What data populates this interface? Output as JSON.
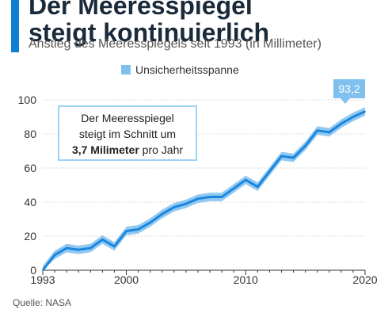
{
  "header": {
    "title_line1": "Der Meeresspiegel",
    "title_line2": "steigt kontinuierlich",
    "subtitle": "Anstieg des Meeresspiegels seit 1993 (in Millimeter)"
  },
  "legend": {
    "label": "Unsicherheitsspanne"
  },
  "annotation": {
    "line1": "Der Meeresspiegel",
    "line2": "steigt im Schnitt um",
    "bold": "3,7 Milimeter",
    "rest": " pro Jahr"
  },
  "callout": {
    "label": "93,2"
  },
  "source": "Quelle: NASA",
  "colors": {
    "accent": "#0f7fd6",
    "line": "#1a86dd",
    "band": "#7fc0ef"
  },
  "chart_data": {
    "type": "line",
    "title": "",
    "xlabel": "",
    "ylabel": "",
    "xlim": [
      1993,
      2020
    ],
    "ylim": [
      0,
      100
    ],
    "x_ticks": [
      "1993",
      "2000",
      "2010",
      "2020"
    ],
    "y_ticks": [
      "0",
      "20",
      "40",
      "60",
      "80",
      "100"
    ],
    "grid": true,
    "legend_position": "top",
    "series": [
      {
        "x": [
          1993,
          1994,
          1995,
          1996,
          1997,
          1998,
          1999,
          2000,
          2001,
          2002,
          2003,
          2004,
          2005,
          2006,
          2007,
          2008,
          2009,
          2010,
          2011,
          2012,
          2013,
          2014,
          2015,
          2016,
          2017,
          2018,
          2019,
          2020
        ],
        "y": [
          0,
          9,
          13,
          12,
          13,
          18,
          14,
          23,
          24,
          28,
          33,
          37,
          39,
          42,
          43,
          43,
          48,
          53,
          49,
          58,
          67,
          66,
          73,
          82,
          81,
          86,
          90,
          93.2
        ],
        "band_halfwidth": 2.5
      }
    ],
    "end_label": "93,2"
  }
}
